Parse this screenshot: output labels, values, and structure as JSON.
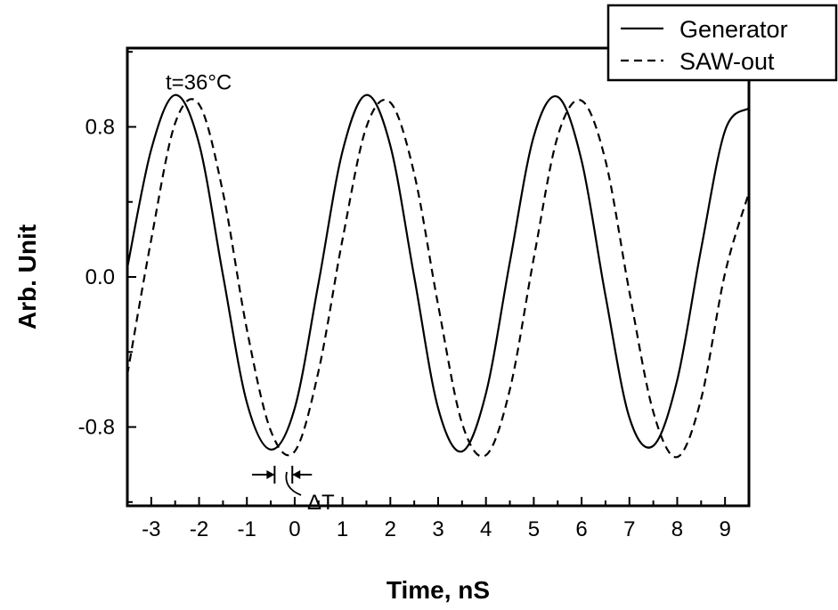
{
  "chart_data": {
    "type": "line",
    "title": "",
    "xlabel": "Time, nS",
    "ylabel": "Arb. Unit",
    "xlim": [
      -3.5,
      9.5
    ],
    "ylim": [
      -1.22,
      1.22
    ],
    "x_ticks": [
      -3,
      -2,
      -1,
      0,
      1,
      2,
      3,
      4,
      5,
      6,
      7,
      8,
      9
    ],
    "x_tick_labels": [
      "-3",
      "-2",
      "-1",
      "0",
      "1",
      "2",
      "3",
      "4",
      "5",
      "6",
      "7",
      "8",
      "9"
    ],
    "y_ticks": [
      0.8,
      0.0,
      -0.8
    ],
    "y_tick_labels": [
      "0.8",
      "0.0",
      "-0.8"
    ],
    "grid": false,
    "legend": {
      "placement": "top-right",
      "entries": [
        {
          "name": "Generator",
          "style": "solid"
        },
        {
          "name": "SAW-out",
          "style": "dashed"
        }
      ]
    },
    "series": [
      {
        "name": "Generator",
        "style": "solid",
        "x": [
          -3.5,
          -3.0,
          -2.5,
          -2.0,
          -1.5,
          -1.0,
          -0.5,
          0.0,
          0.5,
          1.0,
          1.5,
          2.0,
          2.5,
          3.0,
          3.5,
          4.0,
          4.5,
          5.0,
          5.5,
          6.0,
          6.5,
          7.0,
          7.5,
          8.0,
          8.5,
          9.0,
          9.5
        ],
        "values": [
          0.05,
          0.68,
          0.97,
          0.71,
          0.01,
          -0.67,
          -0.92,
          -0.7,
          -0.03,
          0.67,
          0.97,
          0.7,
          0.0,
          -0.7,
          -0.93,
          -0.62,
          0.08,
          0.75,
          0.96,
          0.62,
          -0.1,
          -0.75,
          -0.9,
          -0.55,
          0.15,
          0.78,
          0.9
        ]
      },
      {
        "name": "SAW-out",
        "style": "dashed",
        "x": [
          -3.5,
          -3.0,
          -2.5,
          -2.0,
          -1.5,
          -1.0,
          -0.5,
          0.0,
          0.5,
          1.0,
          1.5,
          2.0,
          2.5,
          3.0,
          3.5,
          4.0,
          4.5,
          5.0,
          5.5,
          6.0,
          6.5,
          7.0,
          7.5,
          8.0,
          8.5,
          9.0,
          9.5
        ],
        "values": [
          -0.52,
          0.2,
          0.82,
          0.92,
          0.45,
          -0.28,
          -0.82,
          -0.93,
          -0.5,
          0.2,
          0.8,
          0.93,
          0.55,
          -0.15,
          -0.78,
          -0.95,
          -0.6,
          0.1,
          0.75,
          0.94,
          0.62,
          -0.08,
          -0.72,
          -0.96,
          -0.65,
          0.02,
          0.45
        ]
      }
    ],
    "annotations": [
      {
        "text": "t=36°C",
        "x": -2.7,
        "y": 1.0
      },
      {
        "text": "ΔT",
        "x": 0.35,
        "y": -1.1
      }
    ]
  }
}
